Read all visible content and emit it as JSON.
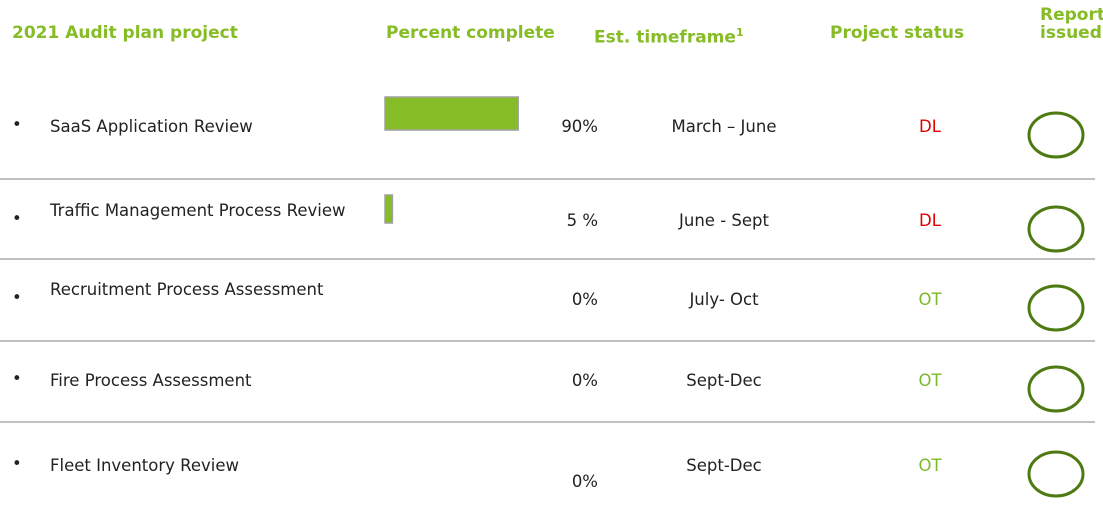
{
  "header": {
    "project": "2021 Audit plan project",
    "percent": "Percent complete",
    "timeframe": "Est. timeframe",
    "timeframe_note": "1",
    "status": "Project status",
    "report": "Report issued"
  },
  "bullet": "•",
  "rows": [
    {
      "name": "SaaS Application Review",
      "percent": 90,
      "percent_label": "90%",
      "timeframe": "March – June",
      "status": "DL"
    },
    {
      "name": "Traffic Management Process Review",
      "percent": 5,
      "percent_label": "5 %",
      "timeframe": "June - Sept",
      "status": "DL"
    },
    {
      "name": "Recruitment Process Assessment",
      "percent": 0,
      "percent_label": "0%",
      "timeframe": "July- Oct",
      "status": "OT"
    },
    {
      "name": "Fire Process Assessment",
      "percent": 0,
      "percent_label": "0%",
      "timeframe": "Sept-Dec",
      "status": "OT"
    },
    {
      "name": "Fleet Inventory Review",
      "percent": 0,
      "percent_label": "0%",
      "timeframe": "Sept-Dec",
      "status": "OT"
    }
  ],
  "status_colors": {
    "DL": "#e00000",
    "OT": "#7ab929"
  }
}
